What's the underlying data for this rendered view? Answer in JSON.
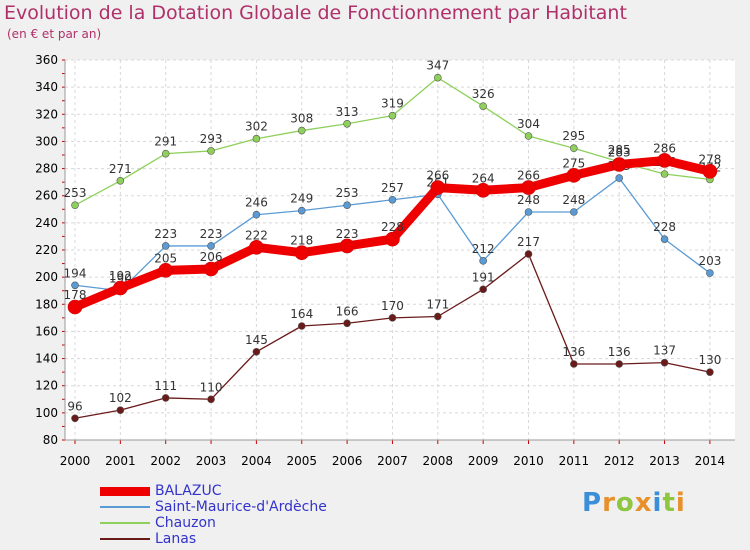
{
  "chart_data": {
    "type": "line",
    "title": "Evolution de la Dotation Globale de Fonctionnement par Habitant",
    "subtitle": "(en € et par an)",
    "x": [
      "2000",
      "2001",
      "2002",
      "2003",
      "2004",
      "2005",
      "2006",
      "2007",
      "2008",
      "2009",
      "2010",
      "2011",
      "2012",
      "2013",
      "2014"
    ],
    "ylim": [
      80,
      360
    ],
    "yticks": [
      80,
      100,
      120,
      140,
      160,
      180,
      200,
      220,
      240,
      260,
      280,
      300,
      320,
      340,
      360
    ],
    "grid": true,
    "legend_position": "bottom-left",
    "series": [
      {
        "name": "BALAZUC",
        "color": "#ee0000",
        "values": [
          178,
          192,
          205,
          206,
          222,
          218,
          223,
          228,
          266,
          264,
          266,
          275,
          283,
          286,
          278
        ]
      },
      {
        "name": "Saint-Maurice-d'Ardèche",
        "color": "#5b9bd5",
        "values": [
          194,
          190,
          223,
          223,
          246,
          249,
          253,
          257,
          261,
          212,
          248,
          248,
          273,
          228,
          203
        ]
      },
      {
        "name": "Chauzon",
        "color": "#8fd05c",
        "values": [
          253,
          271,
          291,
          293,
          302,
          308,
          313,
          319,
          347,
          326,
          304,
          295,
          285,
          276,
          272
        ]
      },
      {
        "name": "Lanas",
        "color": "#6b1a1a",
        "values": [
          96,
          102,
          111,
          110,
          145,
          164,
          166,
          170,
          171,
          191,
          217,
          136,
          136,
          137,
          130
        ]
      }
    ]
  },
  "logo": {
    "letters": [
      "P",
      "r",
      "o",
      "x",
      "i",
      "t",
      "i"
    ],
    "colors": [
      "#3a8fd8",
      "#e8902a",
      "#8fc63f",
      "#e8902a",
      "#3a8fd8",
      "#8fc63f",
      "#e8902a"
    ]
  }
}
